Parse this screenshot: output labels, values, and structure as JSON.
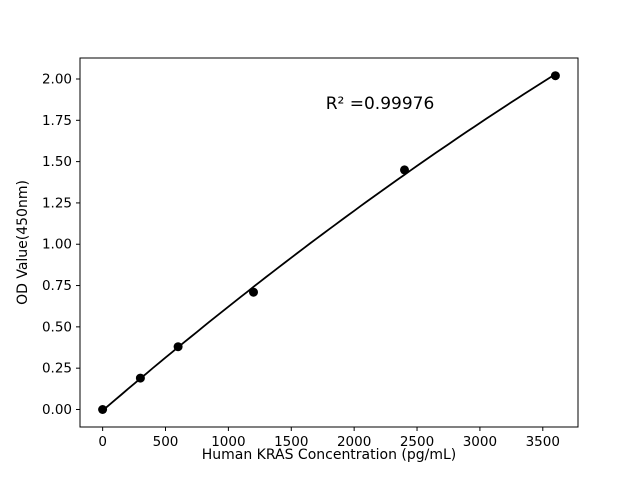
{
  "figure": {
    "background": "#ffffff",
    "foreground": "#000000"
  },
  "chart_data": {
    "type": "scatter",
    "title": "",
    "xlabel": "Human KRAS Concentration (pg/mL)",
    "ylabel": "OD Value(450nm)",
    "x": [
      0,
      300,
      600,
      1200,
      2400,
      3600
    ],
    "y": [
      0.0,
      0.19,
      0.38,
      0.71,
      1.45,
      2.02
    ],
    "trendline": "quadratic",
    "annotation": {
      "text": "R² =0.99976"
    },
    "xlim": [
      -180,
      3780
    ],
    "ylim": [
      -0.106,
      2.127
    ],
    "x_ticks": [
      0,
      500,
      1000,
      1500,
      2000,
      2500,
      3000,
      3500
    ],
    "x_tick_labels": [
      "0",
      "500",
      "1000",
      "1500",
      "2000",
      "2500",
      "3000",
      "3500"
    ],
    "y_ticks": [
      0,
      0.25,
      0.5,
      0.75,
      1.0,
      1.25,
      1.5,
      1.75,
      2.0
    ],
    "y_tick_labels": [
      "0.00",
      "0.25",
      "0.50",
      "0.75",
      "1.00",
      "1.25",
      "1.50",
      "1.75",
      "2.00"
    ],
    "grid": false,
    "legend": null,
    "marker_color": "#000000",
    "line_color": "#000000"
  }
}
